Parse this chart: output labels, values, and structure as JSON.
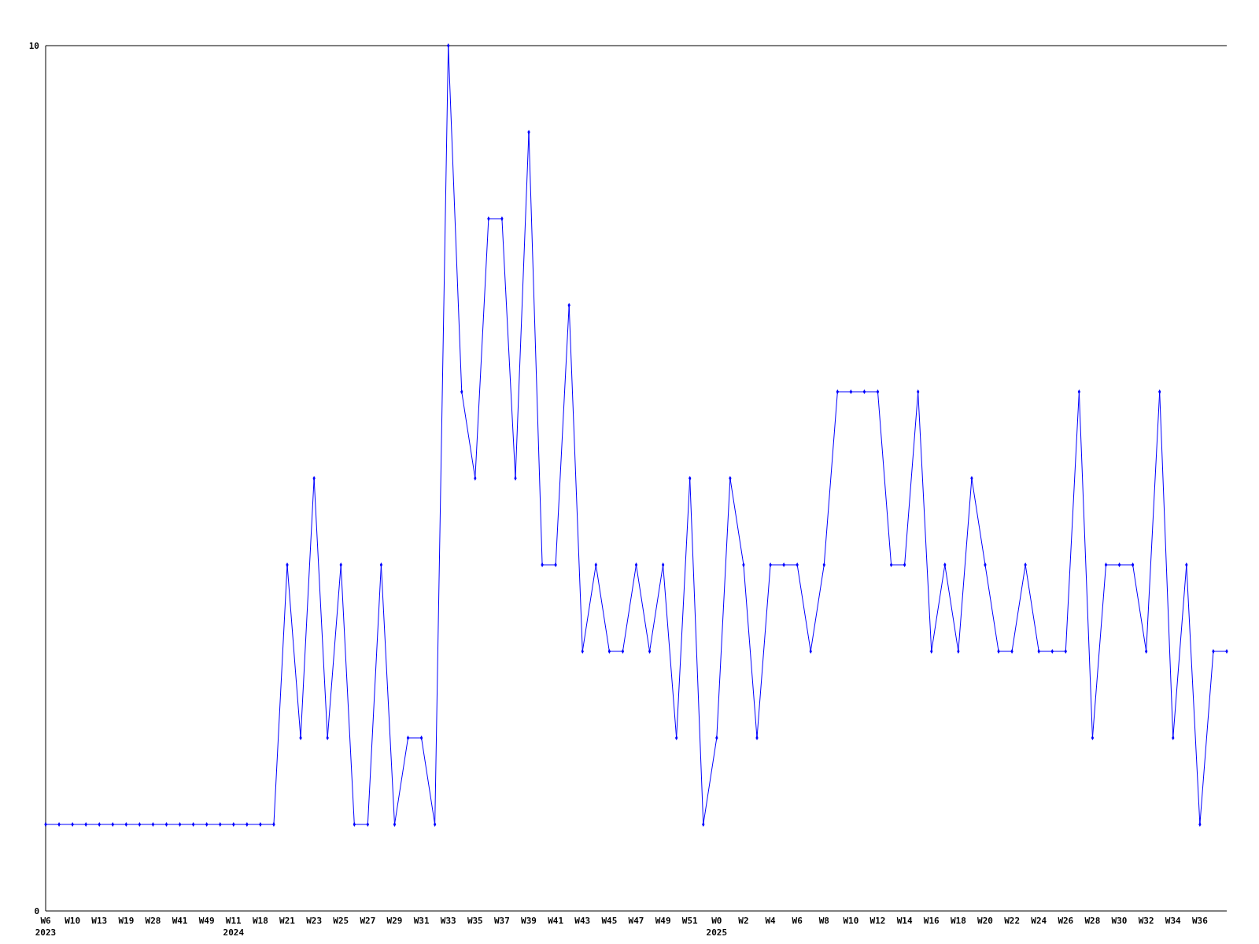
{
  "chart_data": {
    "type": "line",
    "categories": [
      "W6\n2023",
      null,
      "W10",
      null,
      "W13",
      null,
      "W19",
      null,
      "W28",
      null,
      "W41",
      null,
      "W49",
      null,
      "W11\n2024",
      null,
      "W18",
      null,
      "W21",
      null,
      "W23",
      null,
      "W25",
      null,
      "W27",
      null,
      "W29",
      null,
      "W31",
      null,
      "W33",
      null,
      "W35",
      null,
      "W37",
      null,
      "W39",
      null,
      "W41",
      null,
      "W43",
      null,
      "W45",
      null,
      "W47",
      null,
      "W49",
      null,
      "W51",
      null,
      "W0\n2025",
      null,
      "W2",
      null,
      "W4",
      null,
      "W6",
      null,
      "W8",
      null,
      "W10",
      null,
      "W12",
      null,
      "W14",
      null,
      "W16",
      null,
      "W18",
      null,
      "W20",
      null,
      "W22",
      null,
      "W24",
      null,
      "W26",
      null,
      "W28",
      null,
      "W30",
      null,
      "W32",
      null,
      "W34",
      null,
      "W36",
      null,
      null
    ],
    "series": [
      {
        "color": "#0000ff",
        "values": [
          1,
          1,
          1,
          1,
          1,
          1,
          1,
          1,
          1,
          1,
          1,
          1,
          1,
          1,
          1,
          1,
          1,
          1,
          4,
          2,
          5,
          2,
          4,
          1,
          1,
          4,
          1,
          2,
          2,
          1,
          10,
          6,
          5,
          8,
          8,
          5,
          9,
          4,
          4,
          7,
          3,
          4,
          3,
          3,
          4,
          3,
          4,
          2,
          5,
          1,
          2,
          5,
          4,
          2,
          4,
          4,
          4,
          3,
          4,
          6,
          6,
          6,
          6,
          4,
          4,
          6,
          3,
          4,
          3,
          5,
          4,
          3,
          3,
          4,
          3,
          3,
          3,
          6,
          2,
          4,
          4,
          4,
          3,
          6,
          2,
          4,
          1,
          3,
          3
        ]
      }
    ],
    "ylim": [
      0,
      10
    ],
    "yticks": [
      0,
      10
    ],
    "grid": false,
    "marker": "diamond",
    "line_style": "solid"
  }
}
